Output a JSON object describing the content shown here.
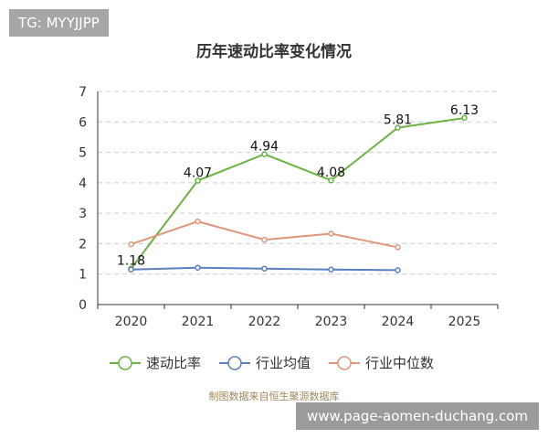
{
  "watermark_tag": "TG: MYYJJPP",
  "footer_url": "www.page-aomen-duchang.com",
  "source_note": "制图数据来自恒生聚源数据库",
  "chart_data": {
    "type": "line",
    "title": "历年速动比率变化情况",
    "xlabel": "",
    "ylabel": "",
    "categories": [
      "2020",
      "2021",
      "2022",
      "2023",
      "2024",
      "2025"
    ],
    "ylim": [
      0,
      7
    ],
    "yticks": [
      "0",
      "1",
      "2",
      "3",
      "4",
      "5",
      "6",
      "7"
    ],
    "grid": "horizontal dashed",
    "legend_position": "bottom",
    "series": [
      {
        "name": "速动比率",
        "color": "#6ab344",
        "values": [
          1.18,
          4.07,
          4.94,
          4.08,
          5.81,
          6.13
        ],
        "labels": [
          "1.18",
          "4.07",
          "4.94",
          "4.08",
          "5.81",
          "6.13"
        ]
      },
      {
        "name": "行业均值",
        "color": "#5b7fc0",
        "values": [
          1.15,
          1.21,
          1.18,
          1.15,
          1.13,
          null
        ]
      },
      {
        "name": "行业中位数",
        "color": "#e0967a",
        "values": [
          1.98,
          2.73,
          2.13,
          2.33,
          1.88,
          null
        ]
      }
    ]
  }
}
